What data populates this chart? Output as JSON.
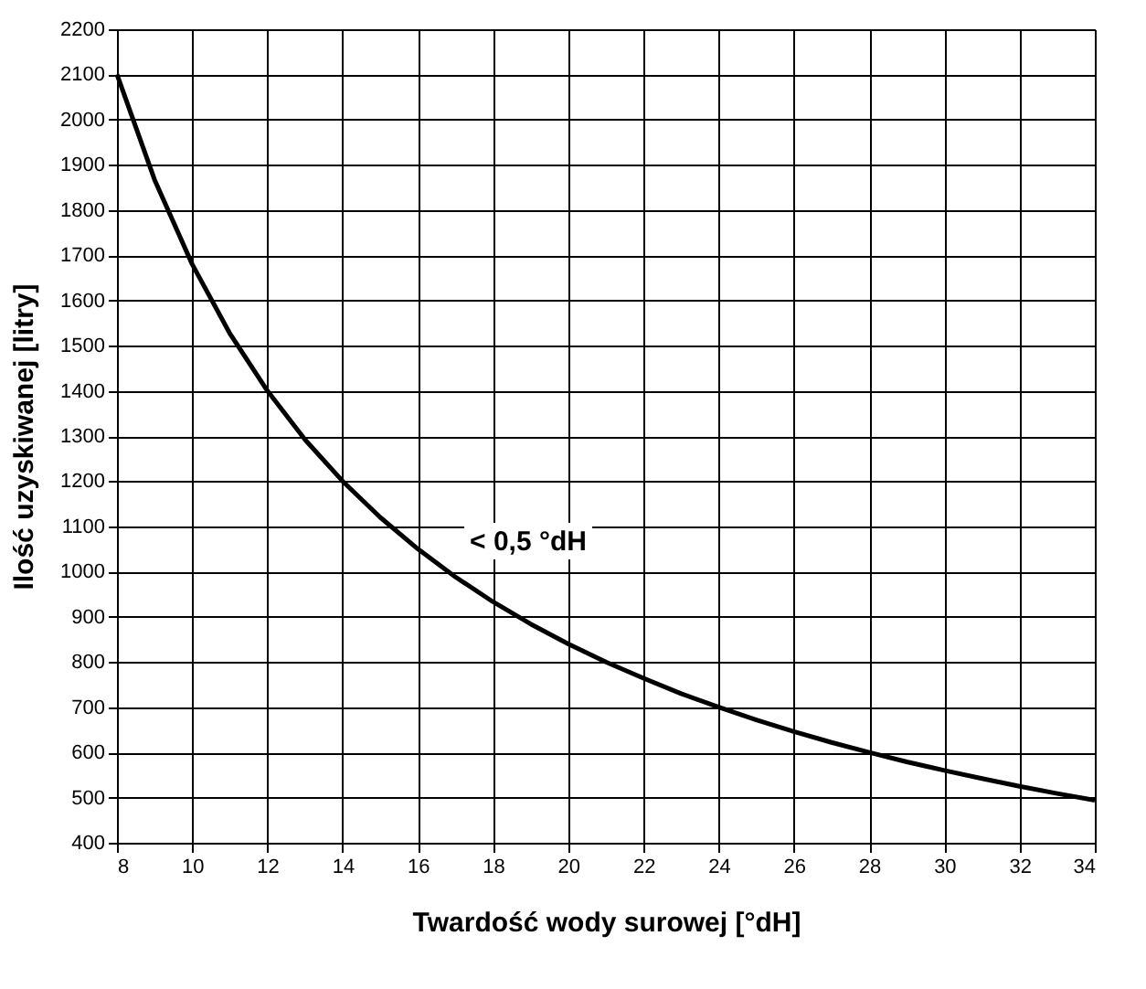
{
  "chart_data": {
    "type": "line",
    "xlabel": "Twardość wody surowej [°dH]",
    "ylabel": "Ilość uzyskiwanej [litry]",
    "x": [
      8,
      9,
      10,
      11,
      12,
      13,
      14,
      15,
      16,
      17,
      18,
      19,
      20,
      21,
      22,
      23,
      24,
      25,
      26,
      27,
      28,
      29,
      30,
      31,
      32,
      33,
      34
    ],
    "series": [
      {
        "color": "#000000",
        "values": [
          2100,
          1867,
          1680,
          1527,
          1400,
          1292,
          1200,
          1120,
          1050,
          988,
          933,
          884,
          840,
          800,
          764,
          730,
          700,
          672,
          646,
          622,
          600,
          579,
          560,
          542,
          525,
          509,
          494
        ]
      }
    ],
    "xlim": [
      8,
      34
    ],
    "xticks": [
      8,
      10,
      12,
      14,
      16,
      18,
      20,
      22,
      24,
      26,
      28,
      30,
      32,
      34
    ],
    "ylim": [
      400,
      2200
    ],
    "yticks": [
      400,
      500,
      600,
      700,
      800,
      900,
      1000,
      1100,
      1200,
      1300,
      1400,
      1500,
      1600,
      1700,
      1800,
      1900,
      2000,
      2100,
      2200
    ],
    "grid": true,
    "marker": "none",
    "line_style": "solid",
    "annotations": [
      "< 0,5 °dH"
    ]
  }
}
